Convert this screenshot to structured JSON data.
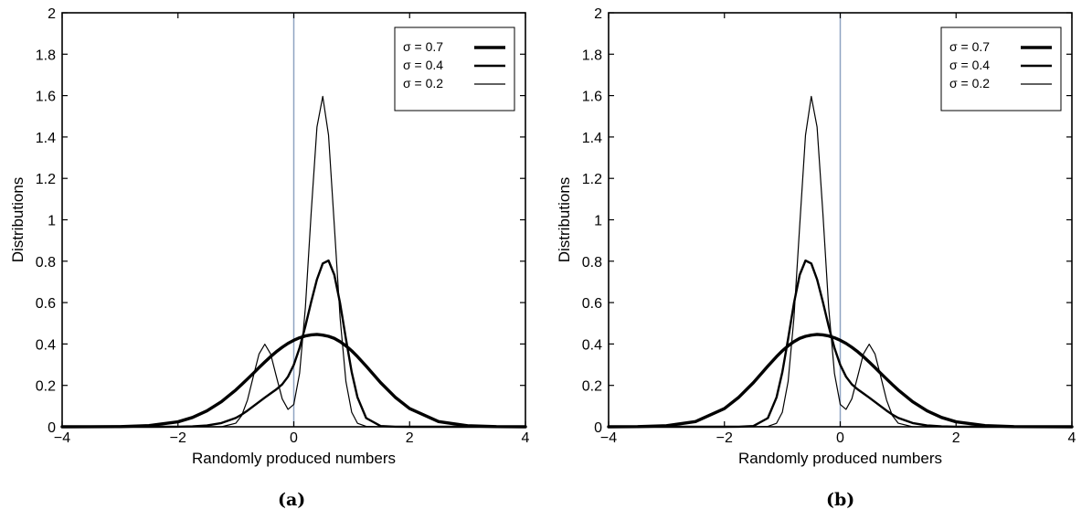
{
  "chart_data": [
    {
      "type": "line",
      "caption": "(a)",
      "xlabel": "Randomly produced numbers",
      "ylabel": "Distributions",
      "xlim": [
        -4,
        4
      ],
      "ylim": [
        0,
        2
      ],
      "xticks": [
        -4,
        -2,
        0,
        2,
        4
      ],
      "xtick_labels": [
        "−4",
        "−2",
        "0",
        "2",
        "4"
      ],
      "yticks": [
        0,
        0.2,
        0.4,
        0.6,
        0.8,
        1,
        1.2,
        1.4,
        1.6,
        1.8,
        2
      ],
      "ytick_labels": [
        "0",
        "0.2",
        "0.4",
        "0.6",
        "0.8",
        "1",
        "1.2",
        "1.4",
        "1.6",
        "1.8",
        "2"
      ],
      "vline_x": 0,
      "vline_color": "#8fa3c2",
      "grid": false,
      "legend_position": "top-right",
      "x": [
        -4,
        -3.5,
        -3,
        -2.5,
        -2,
        -1.75,
        -1.5,
        -1.25,
        -1,
        -0.9,
        -0.8,
        -0.7,
        -0.6,
        -0.5,
        -0.4,
        -0.3,
        -0.2,
        -0.1,
        0,
        0.1,
        0.2,
        0.3,
        0.4,
        0.5,
        0.6,
        0.7,
        0.8,
        0.9,
        1,
        1.1,
        1.25,
        1.5,
        1.75,
        2,
        2.5,
        3,
        3.5,
        4
      ],
      "series": [
        {
          "name": "σ = 0.7",
          "stroke_width": 3.4,
          "values": [
            0,
            0.0001,
            0.001,
            0.006,
            0.024,
            0.045,
            0.077,
            0.121,
            0.178,
            0.204,
            0.231,
            0.258,
            0.286,
            0.313,
            0.339,
            0.363,
            0.384,
            0.403,
            0.418,
            0.43,
            0.439,
            0.444,
            0.446,
            0.443,
            0.437,
            0.427,
            0.411,
            0.391,
            0.367,
            0.339,
            0.293,
            0.213,
            0.143,
            0.088,
            0.025,
            0.005,
            0.0007,
            0
          ]
        },
        {
          "name": "σ = 0.4",
          "stroke_width": 2.4,
          "values": [
            0,
            0,
            0,
            0,
            0.0005,
            0.002,
            0.0065,
            0.018,
            0.043,
            0.059,
            0.078,
            0.099,
            0.12,
            0.141,
            0.161,
            0.181,
            0.205,
            0.242,
            0.299,
            0.381,
            0.486,
            0.603,
            0.712,
            0.789,
            0.803,
            0.734,
            0.596,
            0.425,
            0.264,
            0.142,
            0.042,
            0.0035,
            0.0001,
            0,
            0,
            0,
            0,
            0
          ]
        },
        {
          "name": "σ = 0.2",
          "stroke_width": 1.2,
          "values": [
            0,
            0,
            0,
            0,
            0,
            0,
            0,
            0,
            0.0175,
            0.054,
            0.129,
            0.242,
            0.352,
            0.399,
            0.352,
            0.242,
            0.135,
            0.084,
            0.108,
            0.258,
            0.576,
            1.033,
            1.448,
            1.596,
            1.409,
            0.972,
            0.525,
            0.219,
            0.07,
            0.017,
            0.002,
            0,
            0,
            0,
            0,
            0,
            0,
            0
          ]
        }
      ]
    },
    {
      "type": "line",
      "caption": "(b)",
      "xlabel": "Randomly produced numbers",
      "ylabel": "Distributions",
      "xlim": [
        -4,
        4
      ],
      "ylim": [
        0,
        2
      ],
      "xticks": [
        -4,
        -2,
        0,
        2,
        4
      ],
      "xtick_labels": [
        "−4",
        "−2",
        "0",
        "2",
        "4"
      ],
      "yticks": [
        0,
        0.2,
        0.4,
        0.6,
        0.8,
        1,
        1.2,
        1.4,
        1.6,
        1.8,
        2
      ],
      "ytick_labels": [
        "0",
        "0.2",
        "0.4",
        "0.6",
        "0.8",
        "1",
        "1.2",
        "1.4",
        "1.6",
        "1.8",
        "2"
      ],
      "vline_x": 0,
      "vline_color": "#8fa3c2",
      "grid": false,
      "legend_position": "top-right",
      "x": [
        -4,
        -3.5,
        -3,
        -2.5,
        -2,
        -1.75,
        -1.5,
        -1.25,
        -1.1,
        -1,
        -0.9,
        -0.8,
        -0.7,
        -0.6,
        -0.5,
        -0.4,
        -0.3,
        -0.2,
        -0.1,
        0,
        0.1,
        0.2,
        0.3,
        0.4,
        0.5,
        0.6,
        0.7,
        0.8,
        0.9,
        1,
        1.25,
        1.5,
        1.75,
        2,
        2.5,
        3,
        3.5,
        4
      ],
      "series": [
        {
          "name": "σ = 0.7",
          "stroke_width": 3.4,
          "values": [
            0,
            0.0007,
            0.005,
            0.025,
            0.088,
            0.143,
            0.213,
            0.293,
            0.339,
            0.367,
            0.391,
            0.411,
            0.427,
            0.437,
            0.443,
            0.446,
            0.444,
            0.439,
            0.43,
            0.418,
            0.403,
            0.384,
            0.363,
            0.339,
            0.313,
            0.286,
            0.258,
            0.231,
            0.204,
            0.178,
            0.121,
            0.077,
            0.045,
            0.024,
            0.006,
            0.001,
            0.0001,
            0
          ]
        },
        {
          "name": "σ = 0.4",
          "stroke_width": 2.4,
          "values": [
            0,
            0,
            0,
            0,
            0,
            0.0001,
            0.0035,
            0.042,
            0.142,
            0.264,
            0.425,
            0.596,
            0.734,
            0.803,
            0.789,
            0.712,
            0.603,
            0.486,
            0.381,
            0.299,
            0.242,
            0.205,
            0.181,
            0.161,
            0.141,
            0.12,
            0.099,
            0.078,
            0.059,
            0.043,
            0.018,
            0.0065,
            0.002,
            0.0005,
            0,
            0,
            0,
            0
          ]
        },
        {
          "name": "σ = 0.2",
          "stroke_width": 1.2,
          "values": [
            0,
            0,
            0,
            0,
            0,
            0,
            0,
            0.002,
            0.017,
            0.07,
            0.219,
            0.525,
            0.972,
            1.409,
            1.596,
            1.448,
            1.033,
            0.576,
            0.258,
            0.108,
            0.084,
            0.135,
            0.242,
            0.352,
            0.399,
            0.352,
            0.242,
            0.129,
            0.054,
            0.0175,
            0,
            0,
            0,
            0,
            0,
            0,
            0,
            0
          ]
        }
      ]
    }
  ]
}
